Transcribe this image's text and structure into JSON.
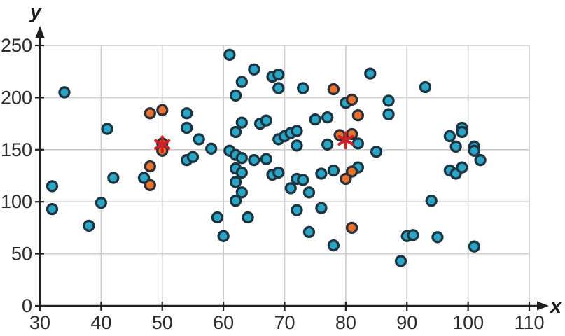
{
  "figure": {
    "background": "#ffffff"
  },
  "colors": {
    "grid": "#cccccc",
    "axis": "#231f20",
    "tick_label": "#2b2b2b",
    "blue_fill": "#2aa5c5",
    "blue_stroke": "#1c3340",
    "orange_fill": "#e9732d",
    "orange_stroke": "#272e38",
    "asterisk_red": "#cd2026"
  },
  "chart_data": {
    "type": "scatter",
    "title": "",
    "xlabel": "x",
    "ylabel": "y",
    "xlim": [
      30,
      110
    ],
    "ylim": [
      0,
      250
    ],
    "xticks": [
      30,
      40,
      50,
      60,
      70,
      80,
      90,
      100,
      110
    ],
    "yticks": [
      0,
      50,
      100,
      150,
      200,
      250
    ],
    "grid": true,
    "legend_position": "none",
    "series": [
      {
        "name": "blue-points",
        "marker": "circle",
        "fill": "#2aa5c5",
        "stroke": "#1c3340",
        "points": [
          [
            34,
            205
          ],
          [
            41,
            170
          ],
          [
            32,
            115
          ],
          [
            32,
            93
          ],
          [
            38,
            77
          ],
          [
            40,
            99
          ],
          [
            42,
            123
          ],
          [
            47,
            123
          ],
          [
            54,
            185
          ],
          [
            54,
            171
          ],
          [
            56,
            160
          ],
          [
            58,
            151
          ],
          [
            54,
            140
          ],
          [
            55,
            143
          ],
          [
            59,
            85
          ],
          [
            64,
            85
          ],
          [
            60,
            67
          ],
          [
            61,
            241
          ],
          [
            65,
            227
          ],
          [
            63,
            215
          ],
          [
            68,
            220
          ],
          [
            69,
            222
          ],
          [
            62,
            202
          ],
          [
            69,
            209
          ],
          [
            73,
            209
          ],
          [
            84,
            223
          ],
          [
            63,
            176
          ],
          [
            66,
            175
          ],
          [
            67,
            178
          ],
          [
            62,
            167
          ],
          [
            69,
            160
          ],
          [
            70,
            163
          ],
          [
            71,
            166
          ],
          [
            72,
            168
          ],
          [
            75,
            179
          ],
          [
            77,
            181
          ],
          [
            72,
            154
          ],
          [
            77,
            155
          ],
          [
            82,
            156
          ],
          [
            85,
            148
          ],
          [
            80,
            195
          ],
          [
            61,
            149
          ],
          [
            62,
            145
          ],
          [
            63,
            142
          ],
          [
            65,
            140
          ],
          [
            67,
            141
          ],
          [
            62,
            132
          ],
          [
            63,
            128
          ],
          [
            62,
            119
          ],
          [
            63,
            109
          ],
          [
            62,
            101
          ],
          [
            68,
            126
          ],
          [
            69,
            128
          ],
          [
            71,
            113
          ],
          [
            72,
            122
          ],
          [
            73,
            121
          ],
          [
            74,
            109
          ],
          [
            76,
            127
          ],
          [
            78,
            130
          ],
          [
            82,
            133
          ],
          [
            72,
            92
          ],
          [
            76,
            94
          ],
          [
            74,
            71
          ],
          [
            78,
            58
          ],
          [
            87,
            197
          ],
          [
            87,
            184
          ],
          [
            93,
            210
          ],
          [
            89,
            43
          ],
          [
            90,
            67
          ],
          [
            91,
            68
          ],
          [
            94,
            101
          ],
          [
            95,
            66
          ],
          [
            101,
            57
          ],
          [
            97,
            163
          ],
          [
            98,
            153
          ],
          [
            99,
            171
          ],
          [
            99,
            167
          ],
          [
            101,
            153
          ],
          [
            101,
            149
          ],
          [
            102,
            140
          ],
          [
            97,
            130
          ],
          [
            98,
            127
          ],
          [
            99,
            133
          ]
        ]
      },
      {
        "name": "orange-points",
        "marker": "circle",
        "fill": "#e9732d",
        "stroke": "#272e38",
        "points": [
          [
            48,
            185
          ],
          [
            50,
            188
          ],
          [
            50,
            156
          ],
          [
            50,
            149
          ],
          [
            48,
            134
          ],
          [
            48,
            116
          ],
          [
            78,
            208
          ],
          [
            81,
            198
          ],
          [
            82,
            183
          ],
          [
            79,
            164
          ],
          [
            81,
            165
          ],
          [
            81,
            129
          ],
          [
            80,
            122
          ],
          [
            81,
            75
          ]
        ]
      },
      {
        "name": "asterisk-markers",
        "marker": "asterisk",
        "color": "#cd2026",
        "points": [
          [
            50,
            155
          ],
          [
            80,
            159
          ]
        ]
      }
    ]
  }
}
